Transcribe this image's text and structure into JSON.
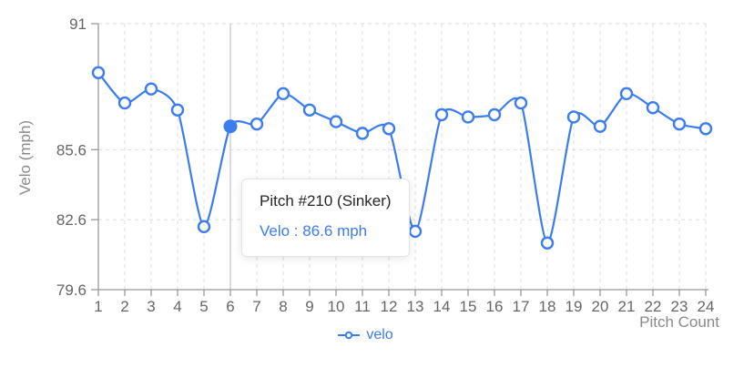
{
  "chart_data": {
    "type": "line",
    "title": "",
    "xlabel": "Pitch Count",
    "ylabel": "Velo (mph)",
    "x": [
      1,
      2,
      3,
      4,
      5,
      6,
      7,
      8,
      9,
      10,
      11,
      12,
      13,
      14,
      15,
      16,
      17,
      18,
      19,
      20,
      21,
      22,
      23,
      24
    ],
    "series": [
      {
        "name": "velo",
        "values": [
          88.9,
          87.6,
          88.2,
          87.3,
          82.3,
          86.6,
          86.7,
          88.0,
          87.3,
          86.8,
          86.3,
          86.5,
          82.1,
          87.1,
          87.0,
          87.1,
          87.6,
          81.6,
          87.0,
          86.6,
          88.0,
          87.4,
          86.7,
          86.5
        ]
      }
    ],
    "y_ticks": [
      "79.6",
      "82.6",
      "85.6",
      "91"
    ],
    "ylim": [
      79.6,
      91
    ],
    "grid": true,
    "legend_position": "bottom",
    "selected_index": 5,
    "selected_x": 6
  },
  "tooltip": {
    "title": "Pitch #210 (Sinker)",
    "line": "Velo : 86.6 mph"
  },
  "legend": {
    "label": "velo"
  },
  "colors": {
    "series_blue": "#3b7cef",
    "grid_gray": "#dcdcdc",
    "axis_gray": "#999999",
    "tick_text_gray": "#666666",
    "axis_name_gray": "#8a8a8a",
    "pointer_line_gray": "#cccccc",
    "tooltip_title_text": "#262626",
    "background": "#ffffff"
  }
}
